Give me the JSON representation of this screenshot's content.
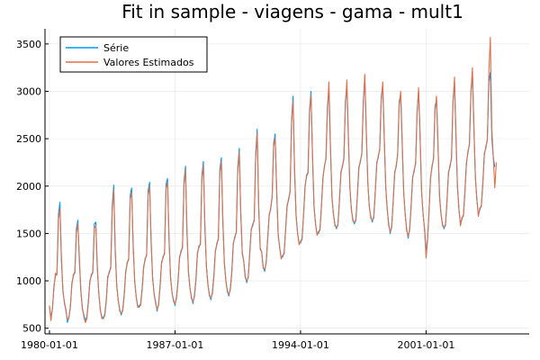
{
  "chart_data": {
    "type": "line",
    "title": "Fit in sample - viagens - gama - mult1",
    "xlabel": "",
    "ylabel": "",
    "x_axis_type": "date",
    "x_ticks": [
      "1980-01-01",
      "1987-01-01",
      "1994-01-01",
      "2001-01-01"
    ],
    "y_ticks": [
      500,
      1000,
      1500,
      2000,
      2500,
      3000,
      3500
    ],
    "xlim": [
      "1979-10-01",
      "2006-10-01"
    ],
    "ylim": [
      440,
      3660
    ],
    "grid": true,
    "legend_position": "top-left",
    "x_start": "1980-01",
    "x_frequency": "monthly",
    "series": [
      {
        "name": "Série",
        "color": "#009AFA",
        "values": [
          720,
          620,
          700,
          950,
          1050,
          1080,
          1700,
          1830,
          1200,
          900,
          760,
          700,
          560,
          620,
          720,
          980,
          1050,
          1100,
          1550,
          1640,
          1200,
          900,
          700,
          640,
          580,
          620,
          780,
          1000,
          1050,
          1100,
          1600,
          1620,
          1120,
          880,
          690,
          620,
          600,
          650,
          800,
          1050,
          1080,
          1150,
          1800,
          2010,
          1300,
          960,
          790,
          700,
          640,
          700,
          860,
          1100,
          1180,
          1240,
          1900,
          1980,
          1350,
          1010,
          830,
          740,
          720,
          760,
          920,
          1150,
          1220,
          1280,
          1950,
          2040,
          1400,
          1040,
          860,
          780,
          680,
          760,
          950,
          1200,
          1240,
          1300,
          2020,
          2080,
          1420,
          1050,
          870,
          800,
          740,
          830,
          1000,
          1250,
          1300,
          1360,
          2050,
          2210,
          1500,
          1100,
          920,
          830,
          760,
          850,
          1020,
          1300,
          1350,
          1400,
          2120,
          2260,
          1550,
          1160,
          960,
          860,
          800,
          880,
          1060,
          1320,
          1380,
          1450,
          2180,
          2300,
          1620,
          1200,
          1000,
          900,
          840,
          920,
          1100,
          1400,
          1450,
          1520,
          2200,
          2400,
          1700,
          1300,
          1200,
          1050,
          980,
          1050,
          1300,
          1550,
          1580,
          1650,
          2350,
          2600,
          1760,
          1350,
          1300,
          1150,
          1100,
          1200,
          1450,
          1700,
          1750,
          1900,
          2450,
          2550,
          1950,
          1500,
          1350,
          1250,
          1250,
          1300,
          1550,
          1800,
          1850,
          1950,
          2700,
          2950,
          2150,
          1700,
          1500,
          1400,
          1400,
          1450,
          1700,
          2000,
          2100,
          2150,
          2800,
          3000,
          2300,
          1800,
          1600,
          1500,
          1500,
          1550,
          1800,
          2100,
          2200,
          2300,
          2850,
          3000,
          2400,
          1900,
          1700,
          1600,
          1550,
          1600,
          1850,
          2150,
          2200,
          2300,
          2900,
          3050,
          2500,
          2000,
          1750,
          1650,
          1600,
          1650,
          1900,
          2200,
          2250,
          2350,
          2900,
          3150,
          2550,
          2050,
          1780,
          1680,
          1620,
          1680,
          1950,
          2250,
          2300,
          2400,
          2950,
          3050,
          2500,
          2000,
          1750,
          1600,
          1500,
          1580,
          1850,
          2150,
          2200,
          2350,
          2900,
          2950,
          2450,
          1950,
          1700,
          1550,
          1450,
          1550,
          1800,
          2100,
          2150,
          2250,
          2800,
          3000,
          2500,
          1950,
          1700,
          1550,
          1300,
          1450,
          1750,
          2100,
          2200,
          2300,
          2850,
          2900,
          2400,
          1900,
          1700,
          1600,
          1550,
          1600,
          1850,
          2150,
          2200,
          2300,
          2900,
          3100,
          2500,
          2000,
          1750,
          1600,
          1650,
          1700,
          1950,
          2250,
          2350,
          2450,
          3000,
          3200,
          2600,
          2100,
          1850,
          1700,
          1750,
          1800,
          2050,
          2350,
          2400,
          2500,
          3100,
          3200,
          2500,
          2300,
          2200
        ]
      },
      {
        "name": "Valores Estimados",
        "color": "#E26F46",
        "values": [
          740,
          580,
          720,
          930,
          1080,
          1060,
          1650,
          1760,
          1250,
          880,
          780,
          680,
          590,
          600,
          740,
          960,
          1070,
          1080,
          1500,
          1600,
          1250,
          880,
          720,
          620,
          560,
          600,
          760,
          980,
          1070,
          1080,
          1560,
          1580,
          1160,
          860,
          700,
          600,
          620,
          630,
          780,
          1030,
          1100,
          1130,
          1750,
          1960,
          1340,
          940,
          800,
          680,
          660,
          680,
          840,
          1080,
          1200,
          1220,
          1860,
          1930,
          1390,
          990,
          840,
          720,
          740,
          740,
          900,
          1130,
          1240,
          1260,
          1900,
          2000,
          1440,
          1020,
          870,
          760,
          700,
          740,
          930,
          1180,
          1260,
          1280,
          1980,
          2040,
          1460,
          1030,
          880,
          780,
          760,
          810,
          980,
          1230,
          1320,
          1340,
          2010,
          2170,
          1540,
          1080,
          930,
          810,
          780,
          830,
          1000,
          1280,
          1370,
          1380,
          2080,
          2220,
          1590,
          1140,
          970,
          840,
          820,
          860,
          1040,
          1300,
          1400,
          1430,
          2140,
          2260,
          1660,
          1180,
          1010,
          880,
          860,
          900,
          1080,
          1380,
          1470,
          1500,
          2160,
          2360,
          1740,
          1280,
          1210,
          1030,
          1000,
          1030,
          1280,
          1530,
          1600,
          1630,
          2310,
          2560,
          1800,
          1330,
          1310,
          1130,
          1120,
          1180,
          1430,
          1680,
          1770,
          1880,
          2410,
          2510,
          1990,
          1480,
          1360,
          1230,
          1270,
          1280,
          1530,
          1780,
          1870,
          1930,
          2660,
          2900,
          2190,
          1680,
          1510,
          1380,
          1420,
          1430,
          1680,
          1980,
          2120,
          2130,
          2760,
          2960,
          2340,
          1780,
          1610,
          1480,
          1520,
          1530,
          1780,
          2080,
          2220,
          2280,
          2800,
          3100,
          2440,
          1880,
          1710,
          1580,
          1570,
          1580,
          1830,
          2130,
          2220,
          2280,
          2850,
          3120,
          2540,
          1980,
          1760,
          1630,
          1620,
          1630,
          1880,
          2180,
          2270,
          2330,
          2860,
          3180,
          2590,
          2030,
          1790,
          1660,
          1640,
          1660,
          1930,
          2230,
          2320,
          2380,
          2900,
          3100,
          2540,
          1980,
          1760,
          1580,
          1520,
          1560,
          1830,
          2130,
          2220,
          2330,
          2850,
          3000,
          2490,
          1930,
          1710,
          1530,
          1470,
          1530,
          1780,
          2080,
          2170,
          2230,
          2760,
          3040,
          2540,
          1930,
          1710,
          1530,
          1240,
          1430,
          1730,
          2080,
          2220,
          2280,
          2800,
          2950,
          2440,
          1880,
          1710,
          1580,
          1570,
          1580,
          1830,
          2130,
          2220,
          2280,
          2860,
          3150,
          2540,
          1980,
          1760,
          1580,
          1670,
          1680,
          1930,
          2230,
          2370,
          2430,
          2960,
          3250,
          2640,
          2080,
          1860,
          1680,
          1770,
          1780,
          2030,
          2330,
          2420,
          2480,
          3200,
          3570,
          2600,
          2300,
          1980,
          2250
        ]
      }
    ]
  }
}
